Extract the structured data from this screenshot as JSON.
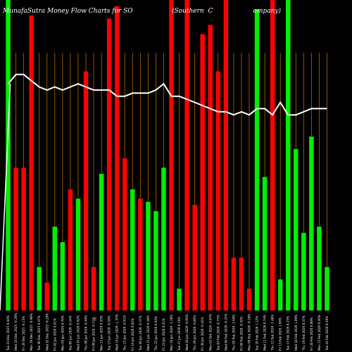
{
  "chart_data": {
    "type": "bar",
    "title": "MunafaSutra  Money Flow  Charts for SO",
    "subtitle": "(Southern  C                    ompany)",
    "axis_marker": "C",
    "colors": {
      "up": "#00ee00",
      "down": "#ff0000",
      "grid": "#b06a00",
      "line": "#ffffff",
      "background": "#000000"
    },
    "ylim": [
      0,
      100
    ],
    "categories": [
      "Tue 23 Dec 2025 0.40%",
      "Wed 24 Dec 2025 -0.26%",
      "Fri 26 Dec 2025 -0.13%",
      "Mon 29 Dec 2025 -0.98%",
      "Tue 30 Dec 2025 0.47%",
      "Wed 31 Dec 2025 -0.29%",
      "Fri 02 Jan 2026 0.61%",
      "Mon 05 Jan 2026 0.76%",
      "Tue 06 Jan 2026 -0.54%",
      "Wed 07 Jan 2026 0.92%",
      "Thu 08 Jan 2026 -0.44%",
      "Fri 09 Jan 2026 -0.71%",
      "Mon 12 Jan 2026 0.33%",
      "Tue 13 Jan 2026 -0.58%",
      "Wed 14 Jan 2026 -1.35%",
      "Thu 15 Jan 2026 -0.91%",
      "Fri 16 Jan 2026 0.82%",
      "Tue 20 Jan 2026 -0.37%",
      "Wed 21 Jan 2026 0.28%",
      "Thu 22 Jan 2026 0.64%",
      "Fri 23 Jan 2026 0.51%",
      "Mon 26 Jan 2026 -1.20%",
      "Tue 27 Jan 2026 0.19%",
      "Wed 28 Jan 2026 -0.66%",
      "Thu 29 Jan 2026 -0.84%",
      "Fri 30 Jan 2026 -0.42%",
      "Mon 02 Feb 2026 -0.97%",
      "Tue 03 Feb 2026 -0.73%",
      "Wed 04 Feb 2026 -0.25%",
      "Thu 05 Feb 2026 -1.04%",
      "Fri 06 Feb 2026 -0.32%",
      "Mon 09 Feb 2026 -0.18%",
      "Tue 10 Feb 2026 1.12%",
      "Wed 11 Feb 2026 0.74%",
      "Thu 12 Feb 2026 -1.48%",
      "Fri 13 Feb 2026 1.66%",
      "Tue 17 Feb 2026 0.25%",
      "Wed 18 Feb 2026 1.09%",
      "Thu 19 Feb 2026 0.37%",
      "Fri 20 Feb 2026 0.88%",
      "Mon 23 Feb 2026 0.46%",
      "Tue 24 Feb 2026 0.29%"
    ],
    "series": [
      {
        "direction": [
          "up",
          "down",
          "down",
          "down",
          "up",
          "down",
          "up",
          "up",
          "down",
          "up",
          "down",
          "down",
          "up",
          "down",
          "down",
          "down",
          "up",
          "down",
          "up",
          "up",
          "up",
          "down",
          "up",
          "down",
          "down",
          "down",
          "down",
          "down",
          "down",
          "down",
          "down",
          "down",
          "up",
          "up",
          "down",
          "up",
          "up",
          "up",
          "up",
          "up",
          "up",
          "up"
        ],
        "values": [
          100,
          46,
          46,
          95,
          14,
          9,
          27,
          22,
          39,
          36,
          77,
          14,
          44,
          94,
          98,
          49,
          39,
          36,
          35,
          32,
          46,
          100,
          7,
          100,
          34,
          89,
          92,
          77,
          100,
          17,
          17,
          7,
          97,
          43,
          100,
          10,
          100,
          52,
          25,
          56,
          27,
          14
        ]
      }
    ],
    "money_flow_line": [
      73,
      76,
      76,
      74,
      72,
      71,
      72,
      71,
      72,
      73,
      72,
      71,
      71,
      71,
      69,
      69,
      70,
      70,
      70,
      71,
      73,
      69,
      69,
      68,
      67,
      66,
      65,
      64,
      64,
      63,
      64,
      63,
      65,
      65,
      63,
      67,
      63,
      63,
      64,
      65,
      65,
      65
    ]
  }
}
